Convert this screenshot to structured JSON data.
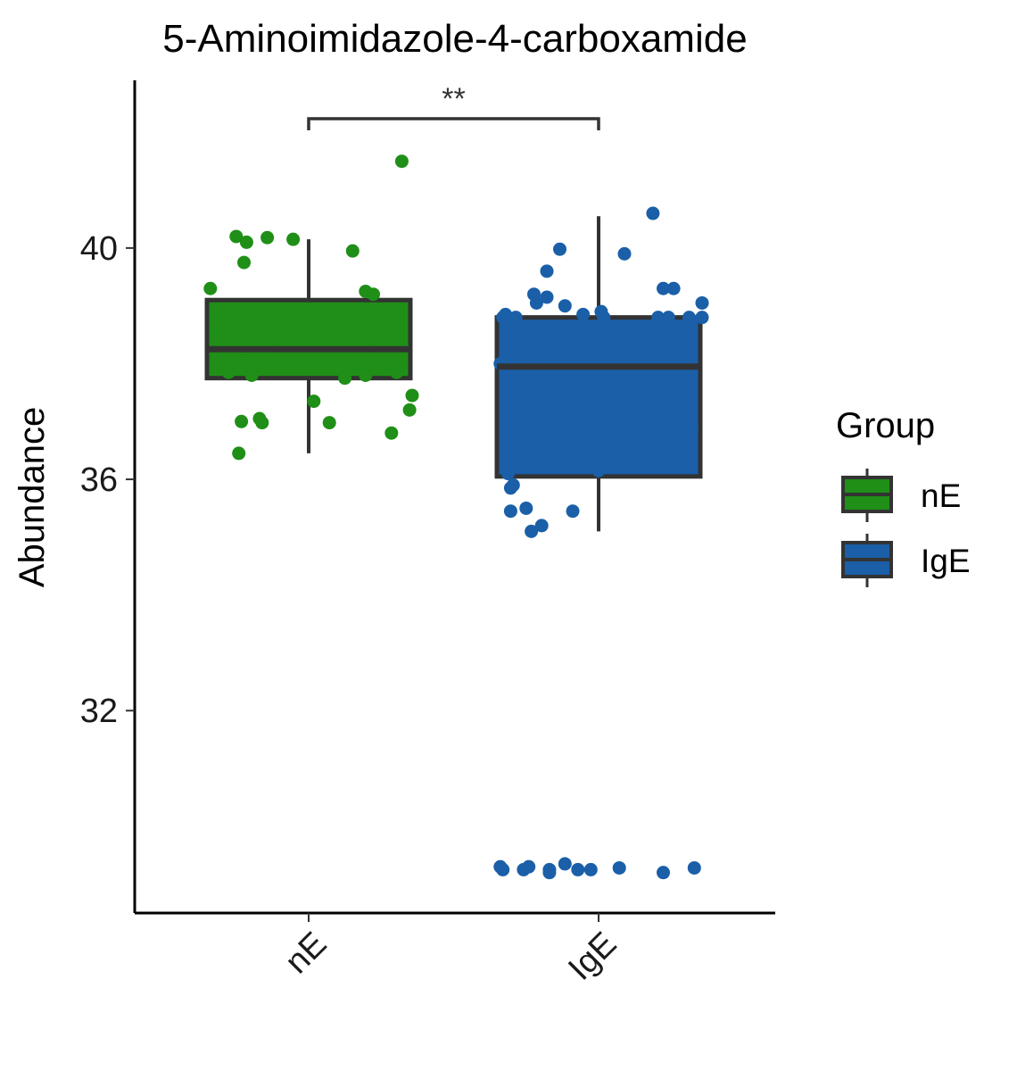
{
  "chart_data": {
    "type": "box",
    "title": "5-Aminoimidazole-4-carboxamide",
    "xlabel": "",
    "ylabel": "Abundance",
    "categories": [
      "nE",
      "IgE"
    ],
    "ylim": [
      28.5,
      42.9
    ],
    "yticks": [
      32,
      36,
      40
    ],
    "ytick_labels": [
      "32",
      "36",
      "40"
    ],
    "grid": false,
    "legend": {
      "title": "Group",
      "position": "right",
      "entries": [
        "nE",
        "IgE"
      ]
    },
    "colors": {
      "nE": "#1f8f17",
      "IgE": "#1a5fa8",
      "outline": "#333333"
    },
    "series": [
      {
        "group": "nE",
        "box": {
          "q1": 37.75,
          "median": 38.25,
          "q3": 39.1,
          "whisker_low": 36.45,
          "whisker_high": 40.15
        },
        "points": [
          [
            -0.38,
            39.3
          ],
          [
            -0.28,
            40.2
          ],
          [
            -0.24,
            40.1
          ],
          [
            -0.16,
            40.18
          ],
          [
            -0.06,
            40.15
          ],
          [
            0.17,
            39.95
          ],
          [
            -0.25,
            39.75
          ],
          [
            0.22,
            39.25
          ],
          [
            0.25,
            39.2
          ],
          [
            -0.33,
            38.9
          ],
          [
            -0.29,
            38.7
          ],
          [
            -0.22,
            38.8
          ],
          [
            -0.14,
            38.6
          ],
          [
            -0.06,
            38.75
          ],
          [
            0.03,
            38.55
          ],
          [
            0.12,
            38.7
          ],
          [
            0.19,
            38.65
          ],
          [
            0.27,
            38.75
          ],
          [
            0.33,
            38.8
          ],
          [
            -0.35,
            38.45
          ],
          [
            -0.28,
            38.35
          ],
          [
            -0.18,
            38.4
          ],
          [
            -0.11,
            38.3
          ],
          [
            -0.02,
            38.45
          ],
          [
            0.07,
            38.35
          ],
          [
            0.15,
            38.4
          ],
          [
            0.23,
            38.45
          ],
          [
            0.28,
            38.4
          ],
          [
            -0.22,
            38.2
          ],
          [
            -0.15,
            38.25
          ],
          [
            -0.1,
            38.2
          ],
          [
            -0.02,
            38.1
          ],
          [
            0.12,
            38.25
          ],
          [
            0.36,
            38.3
          ],
          [
            -0.31,
            37.85
          ],
          [
            -0.22,
            37.8
          ],
          [
            0.14,
            37.75
          ],
          [
            0.22,
            37.8
          ],
          [
            0.34,
            37.85
          ],
          [
            0.35,
            37.95
          ],
          [
            0.02,
            37.35
          ],
          [
            0.4,
            37.45
          ],
          [
            0.39,
            37.2
          ],
          [
            -0.26,
            37.0
          ],
          [
            -0.19,
            37.05
          ],
          [
            -0.18,
            36.98
          ],
          [
            0.08,
            36.98
          ],
          [
            0.32,
            36.8
          ],
          [
            -0.27,
            36.45
          ],
          [
            0.36,
            41.5
          ]
        ]
      },
      {
        "group": "IgE",
        "box": {
          "q1": 36.05,
          "median": 37.95,
          "q3": 38.8,
          "whisker_low": 35.1,
          "whisker_high": 40.55
        },
        "points": [
          [
            0.21,
            40.6
          ],
          [
            0.1,
            39.9
          ],
          [
            -0.15,
            39.98
          ],
          [
            -0.2,
            39.6
          ],
          [
            -0.25,
            39.2
          ],
          [
            -0.2,
            39.15
          ],
          [
            -0.24,
            39.05
          ],
          [
            -0.13,
            39.0
          ],
          [
            0.25,
            39.3
          ],
          [
            0.29,
            39.3
          ],
          [
            0.4,
            39.05
          ],
          [
            -0.37,
            38.8
          ],
          [
            -0.36,
            38.85
          ],
          [
            -0.32,
            38.8
          ],
          [
            -0.06,
            38.85
          ],
          [
            0.01,
            38.9
          ],
          [
            0.02,
            38.8
          ],
          [
            0.23,
            38.8
          ],
          [
            0.27,
            38.8
          ],
          [
            0.35,
            38.8
          ],
          [
            0.4,
            38.8
          ],
          [
            -0.35,
            38.7
          ],
          [
            -0.38,
            38.0
          ],
          [
            -0.27,
            37.95
          ],
          [
            -0.15,
            37.95
          ],
          [
            0.02,
            37.95
          ],
          [
            0.05,
            37.85
          ],
          [
            0.2,
            37.95
          ],
          [
            0.3,
            37.85
          ],
          [
            0.36,
            36.9
          ],
          [
            -0.35,
            36.1
          ],
          [
            -0.34,
            35.85
          ],
          [
            -0.33,
            35.9
          ],
          [
            -0.28,
            35.5
          ],
          [
            -0.34,
            35.45
          ],
          [
            -0.1,
            35.45
          ],
          [
            -0.22,
            35.2
          ],
          [
            -0.26,
            35.1
          ],
          [
            0.0,
            36.15
          ],
          [
            -0.38,
            29.3
          ],
          [
            -0.37,
            29.25
          ],
          [
            -0.29,
            29.25
          ],
          [
            -0.27,
            29.3
          ],
          [
            -0.19,
            29.25
          ],
          [
            -0.19,
            29.2
          ],
          [
            -0.13,
            29.35
          ],
          [
            -0.08,
            29.25
          ],
          [
            -0.03,
            29.25
          ],
          [
            0.08,
            29.28
          ],
          [
            0.25,
            29.2
          ],
          [
            0.37,
            29.28
          ]
        ]
      }
    ],
    "comparisons": [
      {
        "groups": [
          "nE",
          "IgE"
        ],
        "label": "**"
      }
    ]
  }
}
